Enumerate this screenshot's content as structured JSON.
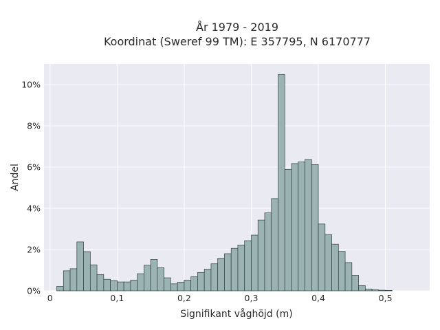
{
  "chart_data": {
    "type": "bar",
    "title_line1": "År 1979 - 2019",
    "title_line2": "Koordinat (Sweref 99 TM): E 357795, N 6170777",
    "xlabel": "Signifikant våghöjd (m)",
    "ylabel": "Andel",
    "xlim": [
      -0.009,
      0.566
    ],
    "ylim": [
      0,
      0.11
    ],
    "x_ticks": [
      0,
      0.1,
      0.2,
      0.3,
      0.4,
      0.5
    ],
    "x_tick_labels": [
      "0",
      "0,1",
      "0,2",
      "0,3",
      "0,4",
      "0,5"
    ],
    "y_ticks": [
      0,
      0.02,
      0.04,
      0.06,
      0.08,
      0.1
    ],
    "y_tick_labels": [
      "0%",
      "2%",
      "4%",
      "6%",
      "8%",
      "10%"
    ],
    "grid": true,
    "bin_start": 0.01,
    "bin_width": 0.01,
    "values": [
      0.0022,
      0.0097,
      0.0107,
      0.0237,
      0.019,
      0.0126,
      0.0079,
      0.0056,
      0.005,
      0.0043,
      0.0043,
      0.0052,
      0.0083,
      0.0124,
      0.0152,
      0.0112,
      0.0063,
      0.0034,
      0.0042,
      0.0052,
      0.0068,
      0.0089,
      0.0105,
      0.0131,
      0.0158,
      0.018,
      0.0206,
      0.0222,
      0.0243,
      0.027,
      0.0343,
      0.0378,
      0.0447,
      0.1049,
      0.0589,
      0.0617,
      0.0625,
      0.0637,
      0.0612,
      0.0324,
      0.0273,
      0.0226,
      0.0191,
      0.0137,
      0.0075,
      0.0025,
      0.0009,
      0.0005,
      0.0003,
      0.0002
    ],
    "colors": {
      "bar_fill": "#9bb3b3",
      "bar_edge": "#2e3e3e",
      "plot_bg": "#eaeaf2",
      "grid": "#ffffff"
    }
  }
}
